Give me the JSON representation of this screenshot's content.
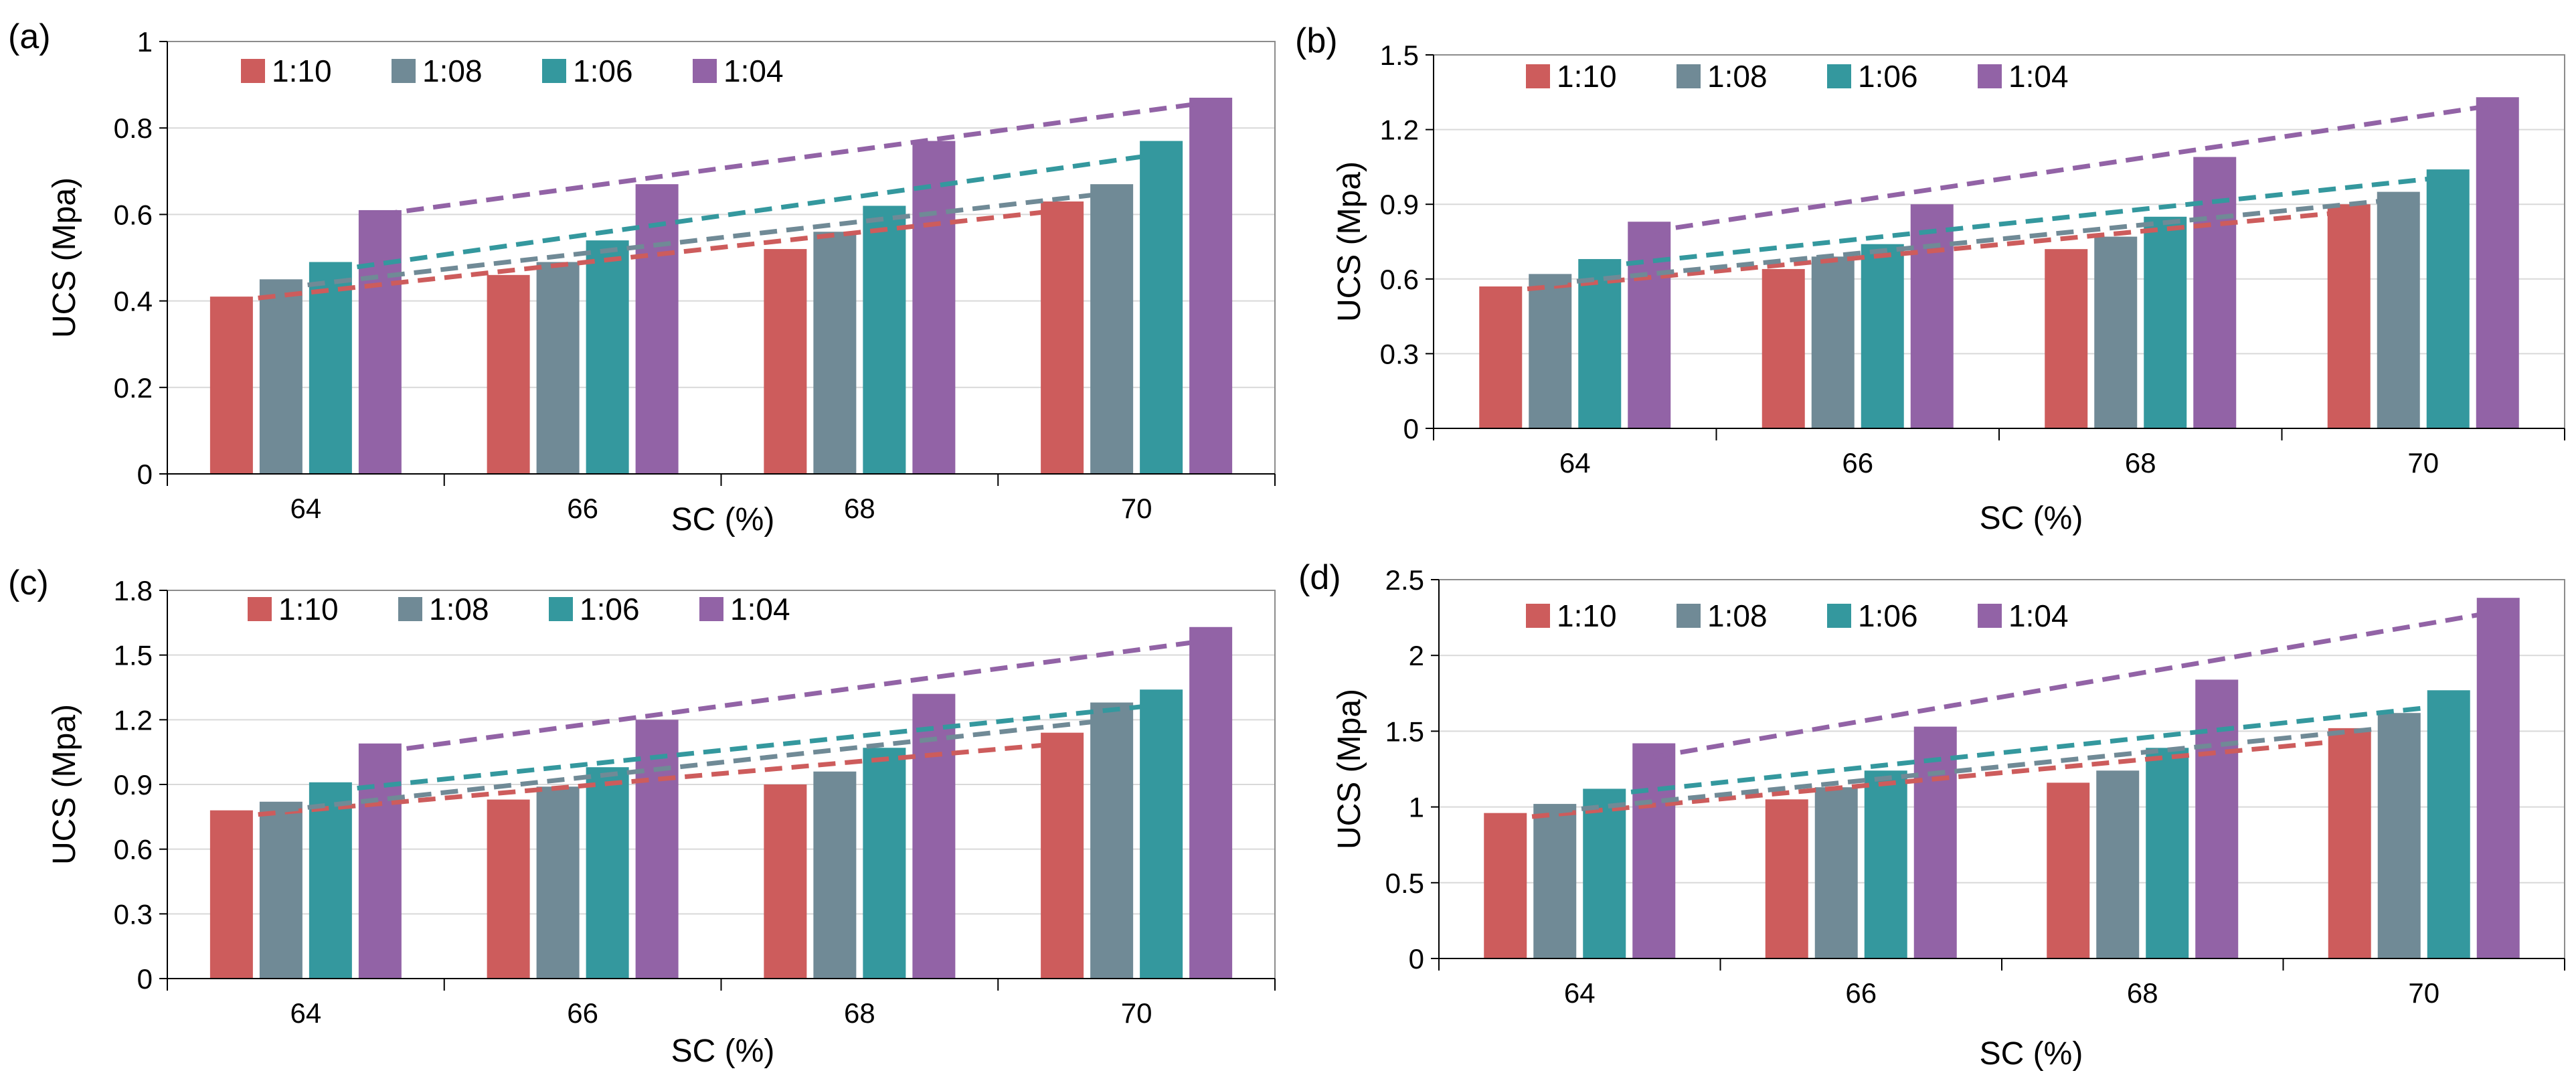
{
  "figure": {
    "series_names": [
      "1:10",
      "1:08",
      "1:06",
      "1:04"
    ],
    "series_colors": [
      "#cd5c5c",
      "#708a96",
      "#34989e",
      "#9263a6"
    ],
    "grid": true
  },
  "chart_data": [
    {
      "panel": "(a)",
      "type": "bar",
      "categories": [
        "64",
        "66",
        "68",
        "70"
      ],
      "xlabel": "SC (%)",
      "ylabel": "UCS (Mpa)",
      "ylim": [
        0,
        1
      ],
      "yticks": [
        0,
        0.2,
        0.4,
        0.6,
        0.8,
        1
      ],
      "ytick_labels": [
        "0",
        "0.2",
        "0.4",
        "0.6",
        "0.8",
        "1"
      ],
      "legend": "top-left",
      "series": [
        {
          "name": "1:10",
          "values": [
            0.41,
            0.46,
            0.52,
            0.63
          ],
          "trend": [
            0.4,
            0.61
          ]
        },
        {
          "name": "1:08",
          "values": [
            0.45,
            0.49,
            0.56,
            0.67
          ],
          "trend": [
            0.43,
            0.65
          ]
        },
        {
          "name": "1:06",
          "values": [
            0.49,
            0.54,
            0.62,
            0.77
          ],
          "trend": [
            0.47,
            0.74
          ]
        },
        {
          "name": "1:04",
          "values": [
            0.61,
            0.67,
            0.77,
            0.87
          ],
          "trend": [
            0.6,
            0.86
          ]
        }
      ]
    },
    {
      "panel": "(b)",
      "type": "bar",
      "categories": [
        "64",
        "66",
        "68",
        "70"
      ],
      "xlabel": "SC (%)",
      "ylabel": "UCS (Mpa)",
      "ylim": [
        0,
        1.5
      ],
      "yticks": [
        0,
        0.3,
        0.6,
        0.9,
        1.2,
        1.5
      ],
      "ytick_labels": [
        "0",
        "0.3",
        "0.6",
        "0.9",
        "1.2",
        "1.5"
      ],
      "legend": "top-left",
      "series": [
        {
          "name": "1:10",
          "values": [
            0.57,
            0.64,
            0.72,
            0.9
          ],
          "trend": [
            0.55,
            0.87
          ]
        },
        {
          "name": "1:08",
          "values": [
            0.62,
            0.69,
            0.77,
            0.95
          ],
          "trend": [
            0.58,
            0.92
          ]
        },
        {
          "name": "1:06",
          "values": [
            0.68,
            0.74,
            0.85,
            1.04
          ],
          "trend": [
            0.65,
            1.01
          ]
        },
        {
          "name": "1:04",
          "values": [
            0.83,
            0.9,
            1.09,
            1.33
          ],
          "trend": [
            0.79,
            1.3
          ]
        }
      ]
    },
    {
      "panel": "(c)",
      "type": "bar",
      "categories": [
        "64",
        "66",
        "68",
        "70"
      ],
      "xlabel": "SC (%)",
      "ylabel": "UCS (Mpa)",
      "ylim": [
        0,
        1.8
      ],
      "yticks": [
        0,
        0.3,
        0.6,
        0.9,
        1.2,
        1.5,
        1.8
      ],
      "ytick_labels": [
        "0",
        "0.3",
        "0.6",
        "0.9",
        "1.2",
        "1.5",
        "1.8"
      ],
      "legend": "top-left",
      "series": [
        {
          "name": "1:10",
          "values": [
            0.78,
            0.83,
            0.9,
            1.14
          ],
          "trend": [
            0.75,
            1.09
          ]
        },
        {
          "name": "1:08",
          "values": [
            0.82,
            0.89,
            0.96,
            1.28
          ],
          "trend": [
            0.78,
            1.2
          ]
        },
        {
          "name": "1:06",
          "values": [
            0.91,
            0.98,
            1.07,
            1.34
          ],
          "trend": [
            0.87,
            1.27
          ]
        },
        {
          "name": "1:04",
          "values": [
            1.09,
            1.2,
            1.32,
            1.63
          ],
          "trend": [
            1.05,
            1.57
          ]
        }
      ]
    },
    {
      "panel": "(d)",
      "type": "bar",
      "categories": [
        "64",
        "66",
        "68",
        "70"
      ],
      "xlabel": "SC (%)",
      "ylabel": "UCS (Mpa)",
      "ylim": [
        0,
        2.5
      ],
      "yticks": [
        0,
        0.5,
        1,
        1.5,
        2,
        2.5
      ],
      "ytick_labels": [
        "0",
        "0.5",
        "1",
        "1.5",
        "2",
        "2.5"
      ],
      "legend": "top-left",
      "series": [
        {
          "name": "1:10",
          "values": [
            0.96,
            1.05,
            1.16,
            1.52
          ],
          "trend": [
            0.92,
            1.44
          ]
        },
        {
          "name": "1:08",
          "values": [
            1.02,
            1.13,
            1.24,
            1.62
          ],
          "trend": [
            0.97,
            1.53
          ]
        },
        {
          "name": "1:06",
          "values": [
            1.12,
            1.24,
            1.39,
            1.77
          ],
          "trend": [
            1.08,
            1.67
          ]
        },
        {
          "name": "1:04",
          "values": [
            1.42,
            1.53,
            1.84,
            2.38
          ],
          "trend": [
            1.33,
            2.29
          ]
        }
      ]
    }
  ]
}
